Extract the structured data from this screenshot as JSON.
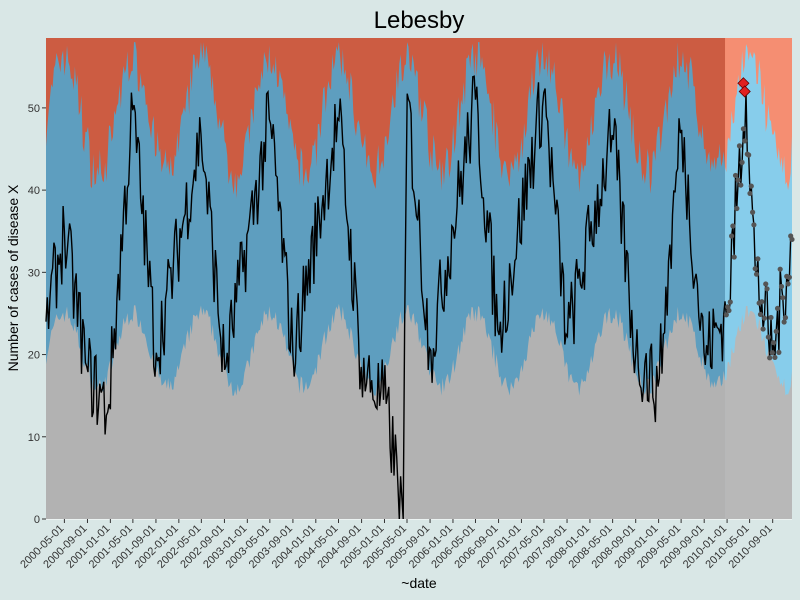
{
  "chart_data": {
    "type": "area",
    "title": "Lebesby",
    "xlabel": "~date",
    "ylabel": "Number of cases of disease X",
    "ylim": [
      0,
      58.5
    ],
    "xlim": [
      "2000-01-24",
      "2010-12-13"
    ],
    "yticks": [
      0,
      10,
      20,
      30,
      40,
      50
    ],
    "xticks": [
      "2000-05-01",
      "2000-09-01",
      "2001-01-01",
      "2001-05-01",
      "2001-09-01",
      "2002-01-01",
      "2002-05-01",
      "2002-09-01",
      "2003-01-01",
      "2003-05-01",
      "2003-09-01",
      "2004-01-01",
      "2004-05-01",
      "2004-09-01",
      "2005-01-01",
      "2005-05-01",
      "2005-09-01",
      "2006-01-01",
      "2006-05-01",
      "2006-09-01",
      "2007-01-01",
      "2007-05-01",
      "2007-09-01",
      "2008-01-01",
      "2008-05-01",
      "2008-09-01",
      "2009-01-01",
      "2009-05-01",
      "2009-09-01",
      "2010-01-01",
      "2010-05-01",
      "2010-09-01"
    ],
    "grid": true,
    "legend": "none",
    "bands": {
      "lower": {
        "description": "baseline band",
        "peak_dates": [
          "2000-05-01",
          "2001-05-01",
          "2002-05-01",
          "2003-05-01",
          "2004-05-01",
          "2005-05-01",
          "2006-05-01",
          "2007-05-01",
          "2008-05-01",
          "2009-05-01",
          "2010-05-01"
        ],
        "min": 15,
        "max": 26
      },
      "upper": {
        "description": "prediction band",
        "min": 36,
        "max": 58
      }
    },
    "forecast_start": "2009-12-28",
    "series_keypoints": [
      {
        "date": "2000-01-24",
        "value": 24
      },
      {
        "date": "2000-05-01",
        "value": 35
      },
      {
        "date": "2000-09-01",
        "value": 18
      },
      {
        "date": "2000-12-18",
        "value": 13
      },
      {
        "date": "2001-05-01",
        "value": 50
      },
      {
        "date": "2001-09-01",
        "value": 20
      },
      {
        "date": "2002-05-01",
        "value": 47
      },
      {
        "date": "2002-09-01",
        "value": 18
      },
      {
        "date": "2003-05-01",
        "value": 49
      },
      {
        "date": "2003-09-01",
        "value": 20
      },
      {
        "date": "2004-05-01",
        "value": 49
      },
      {
        "date": "2004-09-01",
        "value": 18
      },
      {
        "date": "2005-01-10",
        "value": 14
      },
      {
        "date": "2005-04-11",
        "value": 0
      },
      {
        "date": "2005-05-01",
        "value": 52
      },
      {
        "date": "2005-09-01",
        "value": 20
      },
      {
        "date": "2006-05-01",
        "value": 51
      },
      {
        "date": "2006-09-01",
        "value": 22
      },
      {
        "date": "2007-05-01",
        "value": 52
      },
      {
        "date": "2007-09-01",
        "value": 22
      },
      {
        "date": "2008-05-01",
        "value": 47
      },
      {
        "date": "2008-09-01",
        "value": 20
      },
      {
        "date": "2009-01-01",
        "value": 16
      },
      {
        "date": "2009-05-01",
        "value": 48
      },
      {
        "date": "2009-09-01",
        "value": 20
      },
      {
        "date": "2010-01-01",
        "value": 25
      },
      {
        "date": "2010-04-12",
        "value": 52
      },
      {
        "date": "2010-06-01",
        "value": 30
      },
      {
        "date": "2010-09-01",
        "value": 20
      },
      {
        "date": "2010-12-13",
        "value": 34
      }
    ],
    "alarms": [
      {
        "date": "2010-03-29",
        "value": 53
      },
      {
        "date": "2010-04-05",
        "value": 52
      }
    ],
    "colors": {
      "panel_background": "#d9e7e6",
      "baseline_band": "#b2b2b2",
      "middle_band": "#5e9ebf",
      "upper_band": "#cc5c42",
      "forecast_baseline_band": "#b8b8b8",
      "forecast_middle_band": "#87cdeb",
      "forecast_upper_band": "#f58e72",
      "series_line": "#000000",
      "forecast_points": "#555555",
      "alarm_marker": "#e02020"
    }
  }
}
